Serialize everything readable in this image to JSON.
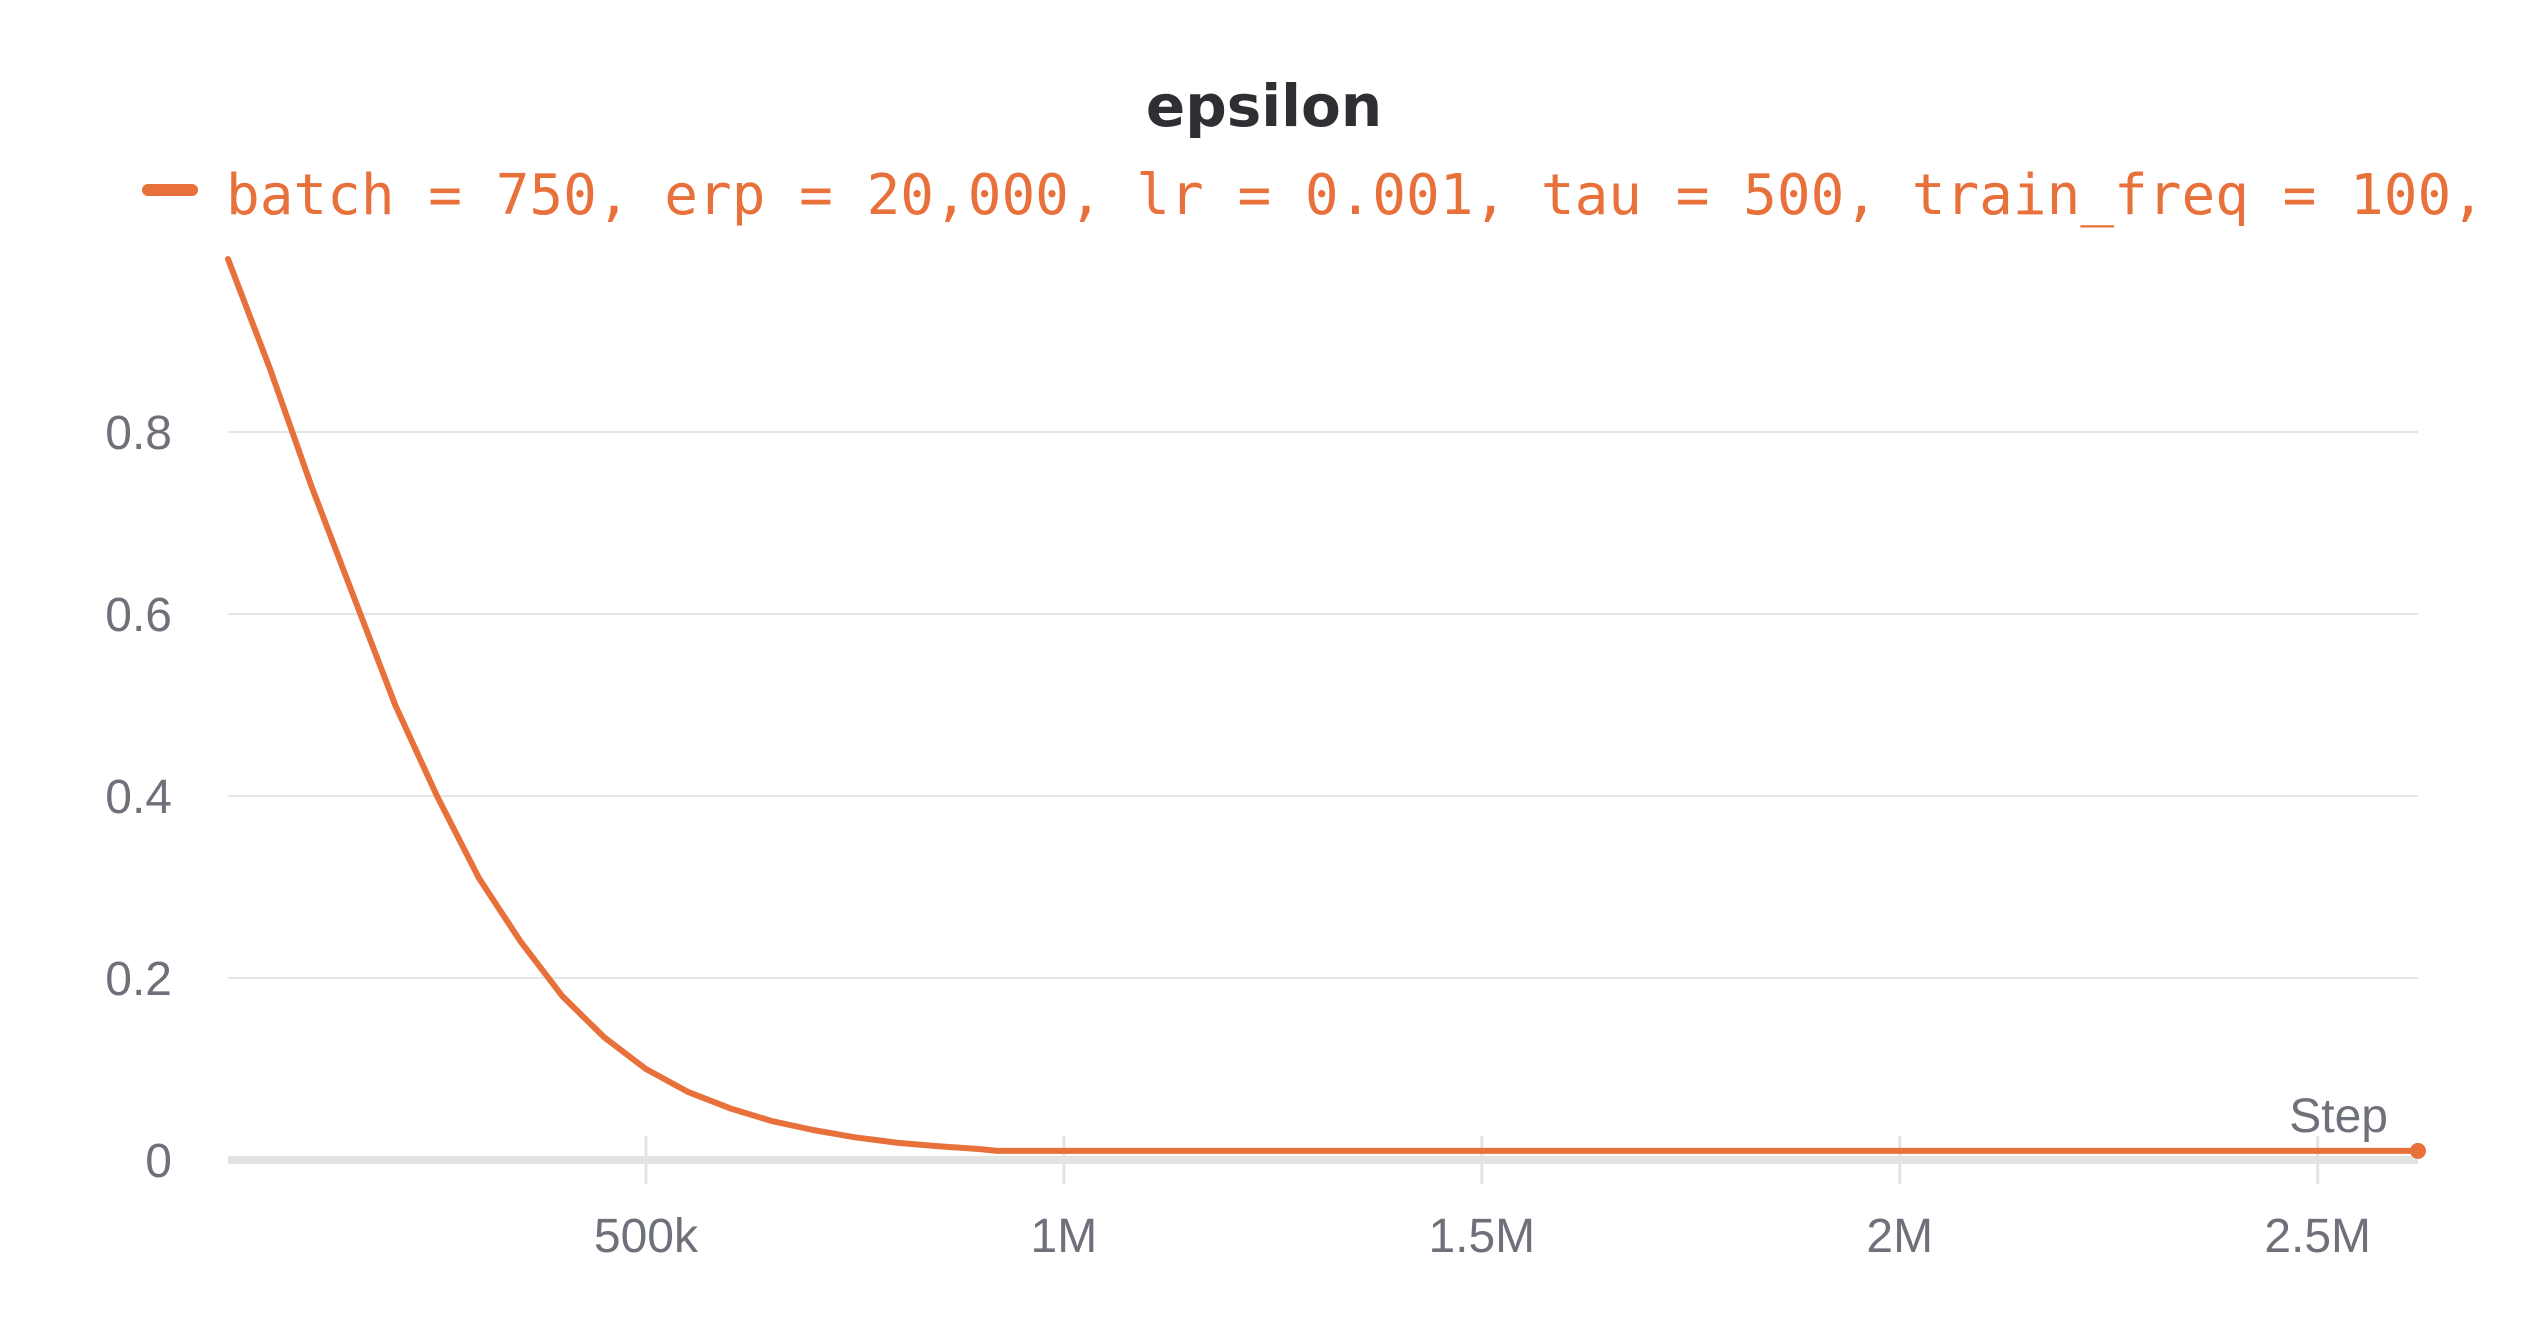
{
  "chart_data": {
    "type": "line",
    "title": "epsilon",
    "xlabel": "Step",
    "ylabel": "",
    "xlim": [
      0,
      2620000
    ],
    "ylim": [
      0,
      1.0
    ],
    "x_ticks": [
      {
        "value": 500000,
        "label": "500k"
      },
      {
        "value": 1000000,
        "label": "1M"
      },
      {
        "value": 1500000,
        "label": "1.5M"
      },
      {
        "value": 2000000,
        "label": "2M"
      },
      {
        "value": 2500000,
        "label": "2.5M"
      }
    ],
    "y_ticks": [
      {
        "value": 0,
        "label": "0"
      },
      {
        "value": 0.2,
        "label": "0.2"
      },
      {
        "value": 0.4,
        "label": "0.4"
      },
      {
        "value": 0.6,
        "label": "0.6"
      },
      {
        "value": 0.8,
        "label": "0.8"
      }
    ],
    "grid": true,
    "legend_position": "top",
    "series": [
      {
        "name": "batch = 750, erp = 20,000, lr = 0.001, tau = 500, train_freq = 100,",
        "color": "#e8703a",
        "x": [
          0,
          50000,
          100000,
          150000,
          200000,
          250000,
          300000,
          350000,
          400000,
          450000,
          500000,
          550000,
          600000,
          650000,
          700000,
          750000,
          800000,
          850000,
          900000,
          920000,
          1000000,
          1500000,
          2000000,
          2500000,
          2620000
        ],
        "y": [
          0.99,
          0.87,
          0.74,
          0.62,
          0.5,
          0.4,
          0.31,
          0.24,
          0.18,
          0.135,
          0.1,
          0.075,
          0.057,
          0.043,
          0.033,
          0.025,
          0.019,
          0.015,
          0.012,
          0.01,
          0.01,
          0.01,
          0.01,
          0.01,
          0.01
        ]
      }
    ]
  }
}
